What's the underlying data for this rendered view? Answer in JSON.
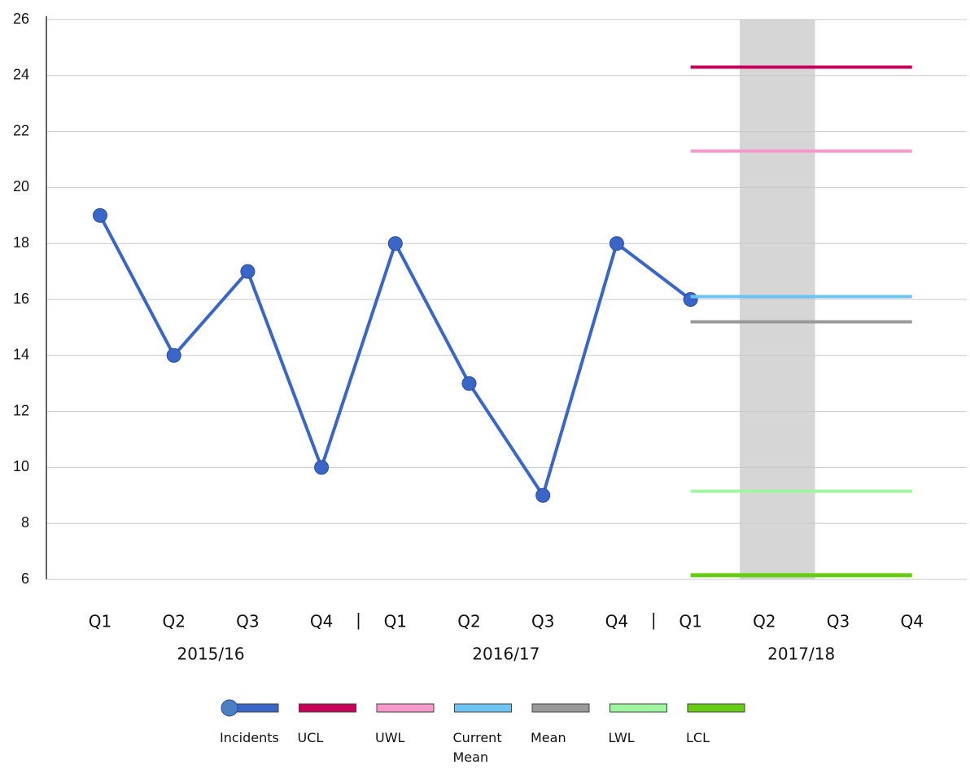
{
  "chart_data": {
    "type": "line",
    "categories": [
      "Q1",
      "Q2",
      "Q3",
      "Q4",
      "Q1",
      "Q2",
      "Q3",
      "Q4",
      "Q1",
      "Q2",
      "Q3",
      "Q4"
    ],
    "groups": [
      "2015/16",
      "2016/17",
      "2017/18"
    ],
    "group_separator": "|",
    "highlight_category": 9,
    "series": [
      {
        "name": "Incidents",
        "color": "#3a66c8",
        "markers": true,
        "values": [
          19,
          14,
          17,
          10,
          18,
          13,
          9,
          18,
          16,
          null,
          null,
          null
        ]
      },
      {
        "name": "UCL",
        "color": "#c8005a",
        "values": [
          null,
          null,
          null,
          null,
          null,
          null,
          null,
          null,
          24.3,
          24.3,
          24.3,
          24.3
        ]
      },
      {
        "name": "UWL",
        "color": "#f59ac8",
        "values": [
          null,
          null,
          null,
          null,
          null,
          null,
          null,
          null,
          21.3,
          21.3,
          21.3,
          21.3
        ]
      },
      {
        "name": "Current Mean",
        "color": "#6cc4f4",
        "values": [
          null,
          null,
          null,
          null,
          null,
          null,
          null,
          null,
          16.1,
          16.1,
          16.1,
          16.1
        ]
      },
      {
        "name": "Mean",
        "color": "#999999",
        "values": [
          null,
          null,
          null,
          null,
          null,
          null,
          null,
          null,
          15.2,
          15.2,
          15.2,
          15.2
        ]
      },
      {
        "name": "LWL",
        "color": "#a0f5a0",
        "values": [
          null,
          null,
          null,
          null,
          null,
          null,
          null,
          null,
          9.15,
          9.15,
          9.15,
          9.15
        ]
      },
      {
        "name": "LCL",
        "color": "#66cc11",
        "values": [
          null,
          null,
          null,
          null,
          null,
          null,
          null,
          null,
          6.15,
          6.15,
          6.15,
          6.15
        ]
      }
    ],
    "ylim": [
      6,
      26
    ],
    "yticks": [
      6,
      8,
      10,
      12,
      14,
      16,
      18,
      20,
      22,
      24,
      26
    ],
    "grid": true
  }
}
